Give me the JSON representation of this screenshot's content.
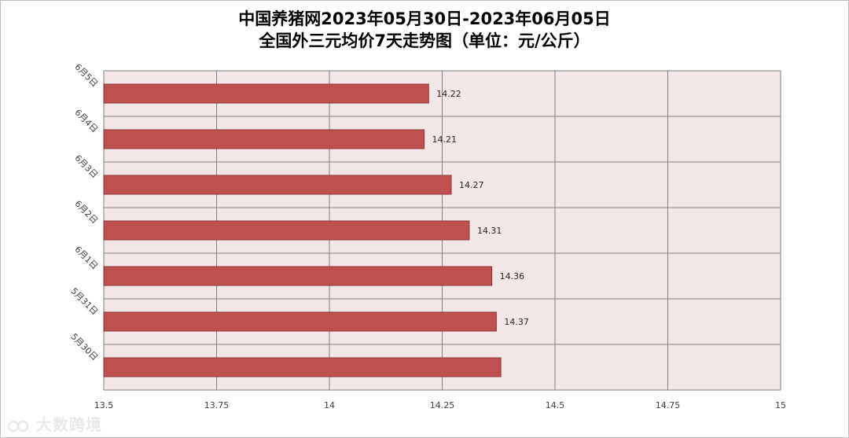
{
  "title_line1": "中国养猪网2023年05月30日-2023年06月05日",
  "title_line2": "全国外三元均价7天走势图（单位：元/公斤）",
  "watermark_text": "大数跨境",
  "chart_data": {
    "type": "bar",
    "orientation": "horizontal",
    "title": "中国养猪网2023年05月30日-2023年06月05日 全国外三元均价7天走势图（单位：元/公斤）",
    "categories": [
      "6月5日",
      "6月4日",
      "6月3日",
      "6月2日",
      "6月1日",
      "5月31日",
      "5月30日"
    ],
    "values": [
      14.22,
      14.21,
      14.27,
      14.31,
      14.36,
      14.37,
      14.38
    ],
    "data_labels": [
      "14.22",
      "14.21",
      "14.27",
      "14.31",
      "14.36",
      "14.37",
      ""
    ],
    "xlim": [
      13.5,
      15
    ],
    "xticks": [
      "13.5",
      "13.75",
      "14",
      "14.25",
      "14.5",
      "14.75",
      "15"
    ],
    "xtick_values": [
      13.5,
      13.75,
      14,
      14.25,
      14.5,
      14.75,
      15
    ],
    "grid": true,
    "legend": "none",
    "colors": {
      "bar": "#c0504d",
      "bar_border": "#8c3836",
      "plot_bg": "#f2e6e6",
      "grid": "#7f7f7f",
      "tick_text": "#404040"
    }
  }
}
